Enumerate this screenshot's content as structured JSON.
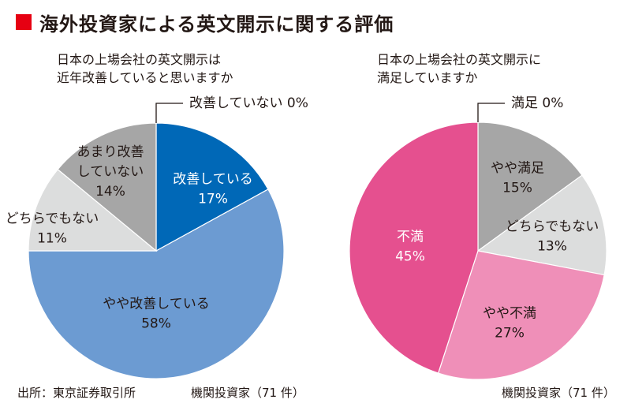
{
  "title": "海外投資家による英文開示に関する評価",
  "colors": {
    "title_mark": "#e60012",
    "text": "#231815",
    "label_on_dark": "#ffffff"
  },
  "footer": {
    "source": "出所：東京証券取引所",
    "left_note": "機関投資家（71 件）",
    "right_note": "機関投資家（71 件）"
  },
  "chart_data": [
    {
      "type": "pie",
      "question": [
        "日本の上場会社の英文開示は",
        "近年改善していると思いますか"
      ],
      "slices": [
        {
          "label": [
            "改善している"
          ],
          "value": 17,
          "value_label": "17%",
          "color": "#0068b7",
          "text_color": "#ffffff"
        },
        {
          "label": [
            "やや改善している"
          ],
          "value": 58,
          "value_label": "58%",
          "color": "#6c9bd2",
          "text_color": "#231815"
        },
        {
          "label": [
            "どちらでもない"
          ],
          "value": 11,
          "value_label": "11%",
          "color": "#dcdddd",
          "text_color": "#231815"
        },
        {
          "label": [
            "あまり改善",
            "していない"
          ],
          "value": 14,
          "value_label": "14%",
          "color": "#a6a6a6",
          "text_color": "#231815"
        }
      ],
      "zero_callout": "改善していない 0%"
    },
    {
      "type": "pie",
      "question": [
        "日本の上場会社の英文開示に",
        "満足していますか"
      ],
      "slices": [
        {
          "label": [
            "やや満足"
          ],
          "value": 15,
          "value_label": "15%",
          "color": "#a6a6a6",
          "text_color": "#231815"
        },
        {
          "label": [
            "どちらでもない"
          ],
          "value": 13,
          "value_label": "13%",
          "color": "#dcdddd",
          "text_color": "#231815"
        },
        {
          "label": [
            "やや不満"
          ],
          "value": 27,
          "value_label": "27%",
          "color": "#ef8fb8",
          "text_color": "#231815"
        },
        {
          "label": [
            "不満"
          ],
          "value": 45,
          "value_label": "45%",
          "color": "#e5508f",
          "text_color": "#ffffff"
        }
      ],
      "zero_callout": "満足 0%"
    }
  ]
}
